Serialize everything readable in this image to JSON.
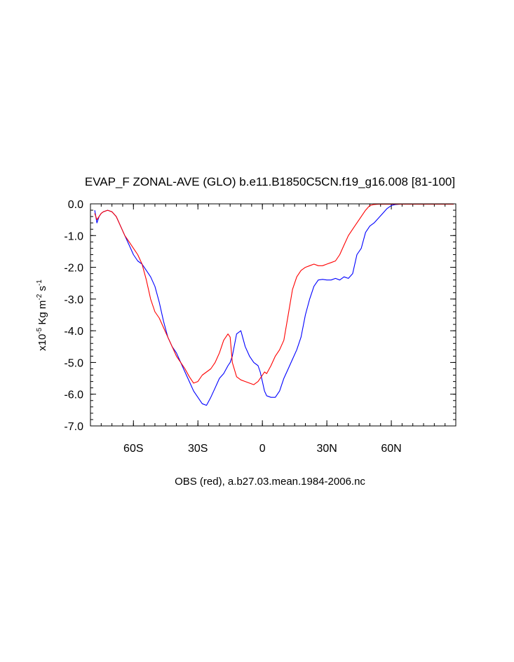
{
  "chart_data": {
    "type": "line",
    "title": "EVAP_F ZONAL-AVE (GLO) b.e11.B1850C5CN.f19_g16.008 [81-100]",
    "xlabel": "OBS (red), a.b27.03.mean.1984-2006.nc",
    "ylabel": {
      "base": "x10",
      "exp": "-5",
      "unit": " Kg m",
      "unit_exp": "-2",
      "unit2": " s",
      "unit2_exp": "-1"
    },
    "xlim": [
      -80,
      90
    ],
    "ylim": [
      -7.0,
      0.0
    ],
    "x_ticks": [
      {
        "value": -60,
        "label": "60S"
      },
      {
        "value": -30,
        "label": "30S"
      },
      {
        "value": 0,
        "label": "0"
      },
      {
        "value": 30,
        "label": "30N"
      },
      {
        "value": 60,
        "label": "60N"
      }
    ],
    "y_ticks": [
      {
        "value": 0,
        "label": "0.0"
      },
      {
        "value": -1,
        "label": "-1.0"
      },
      {
        "value": -2,
        "label": "-2.0"
      },
      {
        "value": -3,
        "label": "-3.0"
      },
      {
        "value": -4,
        "label": "-4.0"
      },
      {
        "value": -5,
        "label": "-5.0"
      },
      {
        "value": -6,
        "label": "-6.0"
      },
      {
        "value": -7,
        "label": "-7.0"
      }
    ],
    "series": [
      {
        "color": "#0000ff",
        "x": [
          -78,
          -77,
          -76,
          -75,
          -74,
          -72,
          -70,
          -68,
          -66,
          -64,
          -62,
          -60,
          -58,
          -56,
          -54,
          -52,
          -50,
          -48,
          -46,
          -44,
          -42,
          -40,
          -38,
          -36,
          -34,
          -32,
          -30,
          -28,
          -26,
          -24,
          -22,
          -20,
          -18,
          -16,
          -15,
          -14,
          -12,
          -10,
          -8,
          -6,
          -4,
          -2,
          -1,
          0,
          1,
          2,
          4,
          6,
          8,
          10,
          12,
          14,
          16,
          18,
          20,
          22,
          24,
          26,
          28,
          30,
          32,
          34,
          36,
          38,
          40,
          42,
          44,
          46,
          48,
          50,
          52,
          54,
          56,
          58,
          60,
          62,
          64,
          65,
          66,
          68,
          70,
          72,
          74,
          76,
          78,
          80,
          82,
          84,
          86,
          88,
          89
        ],
        "y": [
          -0.2,
          -0.6,
          -0.4,
          -0.3,
          -0.25,
          -0.2,
          -0.25,
          -0.4,
          -0.7,
          -1.0,
          -1.3,
          -1.6,
          -1.8,
          -1.9,
          -2.1,
          -2.3,
          -2.6,
          -3.1,
          -3.7,
          -4.2,
          -4.5,
          -4.7,
          -5.0,
          -5.3,
          -5.6,
          -5.9,
          -6.1,
          -6.3,
          -6.35,
          -6.1,
          -5.8,
          -5.5,
          -5.35,
          -5.1,
          -5.0,
          -4.8,
          -4.1,
          -4.0,
          -4.5,
          -4.8,
          -5.0,
          -5.1,
          -5.3,
          -5.6,
          -5.9,
          -6.05,
          -6.1,
          -6.1,
          -5.9,
          -5.5,
          -5.2,
          -4.9,
          -4.6,
          -4.2,
          -3.5,
          -3.0,
          -2.6,
          -2.4,
          -2.38,
          -2.4,
          -2.4,
          -2.35,
          -2.4,
          -2.3,
          -2.35,
          -2.2,
          -1.6,
          -1.4,
          -0.9,
          -0.7,
          -0.6,
          -0.45,
          -0.3,
          -0.15,
          -0.05,
          -0.02,
          -0.01,
          -0.01,
          -0.01,
          -0.01,
          -0.01,
          -0.01,
          -0.01,
          -0.01,
          -0.01,
          -0.01,
          -0.01,
          -0.01,
          -0.01,
          -0.01,
          -0.01
        ]
      },
      {
        "color": "#ff0000",
        "x": [
          -78,
          -77,
          -76,
          -75,
          -74,
          -72,
          -70,
          -68,
          -66,
          -64,
          -62,
          -60,
          -58,
          -56,
          -54,
          -52,
          -50,
          -48,
          -46,
          -44,
          -42,
          -40,
          -38,
          -36,
          -34,
          -32,
          -30,
          -28,
          -26,
          -24,
          -22,
          -20,
          -18,
          -16,
          -15,
          -14,
          -12,
          -10,
          -8,
          -6,
          -4,
          -2,
          -1,
          0,
          1,
          2,
          4,
          6,
          8,
          10,
          12,
          14,
          16,
          18,
          20,
          22,
          24,
          26,
          28,
          30,
          32,
          34,
          36,
          38,
          40,
          42,
          44,
          46,
          48,
          50,
          52,
          54,
          56,
          58,
          60,
          62,
          64,
          65,
          66,
          68,
          70,
          72,
          74,
          76,
          78,
          80,
          82,
          84,
          86,
          88,
          89
        ],
        "y": [
          -0.3,
          -0.5,
          -0.4,
          -0.3,
          -0.25,
          -0.2,
          -0.25,
          -0.4,
          -0.7,
          -1.0,
          -1.2,
          -1.4,
          -1.6,
          -1.9,
          -2.4,
          -3.0,
          -3.4,
          -3.6,
          -3.9,
          -4.2,
          -4.5,
          -4.8,
          -5.0,
          -5.2,
          -5.45,
          -5.65,
          -5.6,
          -5.4,
          -5.3,
          -5.2,
          -5.0,
          -4.7,
          -4.3,
          -4.1,
          -4.2,
          -5.0,
          -5.45,
          -5.55,
          -5.6,
          -5.65,
          -5.7,
          -5.6,
          -5.5,
          -5.4,
          -5.3,
          -5.35,
          -5.1,
          -4.8,
          -4.6,
          -4.3,
          -3.5,
          -2.7,
          -2.3,
          -2.1,
          -2.0,
          -1.95,
          -1.9,
          -1.95,
          -1.95,
          -1.9,
          -1.85,
          -1.8,
          -1.6,
          -1.3,
          -1.0,
          -0.8,
          -0.6,
          -0.4,
          -0.2,
          -0.05,
          -0.02,
          -0.01,
          -0.01,
          -0.01,
          -0.01,
          -0.01,
          -0.01,
          -0.01,
          -0.01,
          -0.01,
          -0.01,
          -0.01,
          -0.01,
          -0.01,
          -0.01,
          -0.01,
          -0.01,
          -0.01,
          -0.01,
          -0.01,
          -0.01
        ]
      }
    ]
  }
}
